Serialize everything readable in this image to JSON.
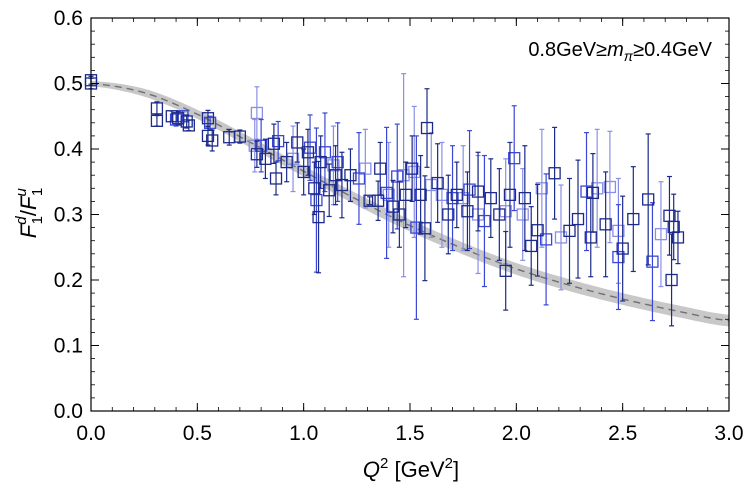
{
  "chart_data": {
    "type": "scatter",
    "title": "",
    "annotation": {
      "prefix": "0.8GeV≥",
      "var": "m",
      "sub": "π",
      "suffix": "≥0.4GeV"
    },
    "xlabel": {
      "var": "Q",
      "sup": "2",
      "unit_open": " [GeV",
      "unit_sup": "2",
      "unit_close": "]"
    },
    "ylabel": {
      "num": "F",
      "num_sub": "1",
      "num_sup": "d",
      "slash": "/",
      "den": "F",
      "den_sub": "1",
      "den_sup": "u"
    },
    "xlim": [
      0.0,
      3.0
    ],
    "ylim": [
      0.0,
      0.6
    ],
    "xticks": [
      "0.0",
      "0.5",
      "1.0",
      "1.5",
      "2.0",
      "2.5",
      "3.0"
    ],
    "yticks": [
      "0.0",
      "0.1",
      "0.2",
      "0.3",
      "0.4",
      "0.5",
      "0.6"
    ],
    "grid": false,
    "colors": {
      "dark": "#1c2a8a",
      "mid": "#3a47d6",
      "light": "#8a8fe6",
      "band": "#c8c8c8",
      "curve": "#707070"
    },
    "band": {
      "x": [
        0.0,
        0.25,
        0.5,
        0.75,
        1.0,
        1.25,
        1.5,
        1.75,
        2.0,
        2.25,
        2.5,
        2.75,
        3.0
      ],
      "center": [
        0.5,
        0.486,
        0.453,
        0.41,
        0.366,
        0.323,
        0.283,
        0.248,
        0.217,
        0.192,
        0.171,
        0.153,
        0.138
      ],
      "halfwidth": [
        0.004,
        0.006,
        0.007,
        0.008,
        0.008,
        0.009,
        0.009,
        0.009,
        0.009,
        0.009,
        0.009,
        0.009,
        0.009
      ]
    },
    "series": [
      {
        "name": "dark",
        "points": [
          [
            0.0,
            0.5,
            0.008
          ],
          [
            0.0,
            0.505,
            0.006
          ],
          [
            0.31,
            0.462,
            0.01
          ],
          [
            0.31,
            0.443,
            0.008
          ],
          [
            0.38,
            0.45,
            0.008
          ],
          [
            0.41,
            0.447,
            0.01
          ],
          [
            0.45,
            0.442,
            0.01
          ],
          [
            0.46,
            0.436,
            0.008
          ],
          [
            0.55,
            0.447,
            0.012
          ],
          [
            0.55,
            0.42,
            0.014
          ],
          [
            0.57,
            0.413,
            0.016
          ],
          [
            0.65,
            0.418,
            0.012
          ],
          [
            0.7,
            0.419,
            0.01
          ],
          [
            0.78,
            0.392,
            0.02
          ],
          [
            0.82,
            0.385,
            0.03
          ],
          [
            0.86,
            0.408,
            0.03
          ],
          [
            0.87,
            0.355,
            0.025
          ],
          [
            0.92,
            0.38,
            0.03
          ],
          [
            0.97,
            0.41,
            0.03
          ],
          [
            1.0,
            0.365,
            0.035
          ],
          [
            1.02,
            0.395,
            0.035
          ],
          [
            1.05,
            0.34,
            0.04
          ],
          [
            1.07,
            0.296,
            0.085
          ],
          [
            1.08,
            0.38,
            0.04
          ],
          [
            1.12,
            0.337,
            0.04
          ],
          [
            1.15,
            0.36,
            0.045
          ],
          [
            1.18,
            0.345,
            0.05
          ],
          [
            1.22,
            0.36,
            0.04
          ],
          [
            1.31,
            0.321,
            0.006
          ],
          [
            1.35,
            0.321,
            0.03
          ],
          [
            1.36,
            0.37,
            0.04
          ],
          [
            1.42,
            0.312,
            0.04
          ],
          [
            1.45,
            0.3,
            0.05
          ],
          [
            1.48,
            0.33,
            0.05
          ],
          [
            1.51,
            0.37,
            0.05
          ],
          [
            1.55,
            0.33,
            0.06
          ],
          [
            1.57,
            0.279,
            0.08
          ],
          [
            1.58,
            0.432,
            0.06
          ],
          [
            1.63,
            0.348,
            0.06
          ],
          [
            1.68,
            0.3,
            0.06
          ],
          [
            1.72,
            0.33,
            0.05
          ],
          [
            1.77,
            0.305,
            0.06
          ],
          [
            1.82,
            0.335,
            0.06
          ],
          [
            1.88,
            0.325,
            0.06
          ],
          [
            1.92,
            0.3,
            0.07
          ],
          [
            1.95,
            0.214,
            0.06
          ],
          [
            1.97,
            0.33,
            0.08
          ],
          [
            2.04,
            0.325,
            0.08
          ],
          [
            2.07,
            0.252,
            0.06
          ],
          [
            2.1,
            0.276,
            0.07
          ],
          [
            2.18,
            0.363,
            0.07
          ],
          [
            2.25,
            0.275,
            0.08
          ],
          [
            2.29,
            0.293,
            0.09
          ],
          [
            2.35,
            0.265,
            0.06
          ],
          [
            2.36,
            0.333,
            0.06
          ],
          [
            2.42,
            0.285,
            0.08
          ],
          [
            2.5,
            0.248,
            0.08
          ],
          [
            2.55,
            0.293,
            0.08
          ],
          [
            2.62,
            0.323,
            0.1
          ],
          [
            2.72,
            0.298,
            0.06
          ],
          [
            2.73,
            0.2,
            0.07
          ],
          [
            2.74,
            0.281,
            0.05
          ],
          [
            2.76,
            0.265,
            0.04
          ]
        ]
      },
      {
        "name": "mid",
        "points": [
          [
            0.4,
            0.445,
            0.01
          ],
          [
            0.43,
            0.45,
            0.008
          ],
          [
            0.56,
            0.44,
            0.01
          ],
          [
            0.8,
            0.405,
            0.04
          ],
          [
            0.88,
            0.412,
            0.03
          ],
          [
            1.03,
            0.402,
            0.05
          ],
          [
            1.06,
            0.322,
            0.11
          ],
          [
            1.1,
            0.395,
            0.06
          ],
          [
            1.16,
            0.38,
            0.06
          ],
          [
            1.26,
            0.355,
            0.07
          ],
          [
            1.39,
            0.333,
            0.1
          ],
          [
            1.44,
            0.358,
            0.08
          ],
          [
            1.53,
            0.28,
            0.14
          ],
          [
            1.7,
            0.325,
            0.08
          ],
          [
            1.78,
            0.338,
            0.09
          ],
          [
            1.85,
            0.29,
            0.1
          ],
          [
            1.99,
            0.386,
            0.08
          ],
          [
            2.14,
            0.262,
            0.1
          ],
          [
            2.33,
            0.335,
            0.09
          ],
          [
            2.48,
            0.235,
            0.08
          ],
          [
            2.64,
            0.228,
            0.09
          ]
        ]
      },
      {
        "name": "light",
        "points": [
          [
            0.78,
            0.455,
            0.04
          ],
          [
            0.77,
            0.405,
            0.04
          ],
          [
            0.95,
            0.385,
            0.05
          ],
          [
            1.14,
            0.375,
            0.06
          ],
          [
            1.29,
            0.37,
            0.06
          ],
          [
            1.4,
            0.33,
            0.08
          ],
          [
            1.47,
            0.36,
            0.155
          ],
          [
            1.52,
            0.365,
            0.1
          ],
          [
            1.6,
            0.345,
            0.08
          ],
          [
            1.65,
            0.33,
            0.08
          ],
          [
            1.75,
            0.325,
            0.08
          ],
          [
            1.82,
            0.3,
            0.09
          ],
          [
            1.95,
            0.305,
            0.08
          ],
          [
            2.03,
            0.3,
            0.07
          ],
          [
            2.12,
            0.34,
            0.09
          ],
          [
            2.21,
            0.265,
            0.08
          ],
          [
            2.38,
            0.34,
            0.09
          ],
          [
            2.44,
            0.342,
            0.085
          ],
          [
            2.48,
            0.275,
            0.08
          ],
          [
            2.68,
            0.27,
            0.08
          ]
        ]
      }
    ]
  }
}
